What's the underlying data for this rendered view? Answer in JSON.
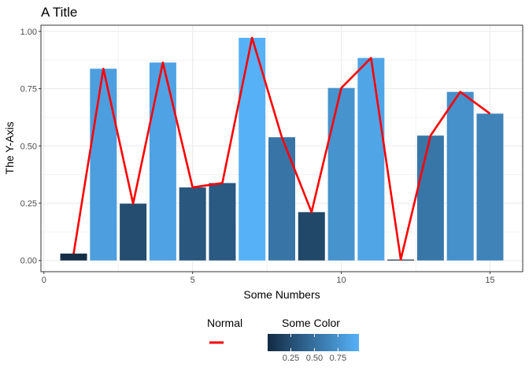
{
  "chart_data": {
    "type": "bar",
    "title": "A Title",
    "xlabel": "Some Numbers",
    "ylabel": "The Y-Axis",
    "xlim": [
      -0.1,
      16.1
    ],
    "ylim": [
      -0.049,
      1.027
    ],
    "x_ticks": [
      0,
      5,
      10,
      15
    ],
    "y_ticks": [
      0.0,
      0.25,
      0.5,
      0.75,
      1.0
    ],
    "y_tick_labels": [
      "0.00",
      "0.25",
      "0.50",
      "0.75",
      "1.00"
    ],
    "grid": true,
    "legend_position": "bottom",
    "x": [
      1,
      2,
      3,
      4,
      5,
      6,
      7,
      8,
      9,
      10,
      11,
      12,
      13,
      14,
      15
    ],
    "values": [
      0.03,
      0.837,
      0.248,
      0.864,
      0.319,
      0.338,
      0.972,
      0.538,
      0.211,
      0.753,
      0.884,
      0.004,
      0.545,
      0.736,
      0.641
    ],
    "series": [
      {
        "name": "Normal",
        "type": "line",
        "color": "#ff0000",
        "values": [
          0.03,
          0.837,
          0.248,
          0.864,
          0.319,
          0.338,
          0.972,
          0.538,
          0.211,
          0.753,
          0.884,
          0.004,
          0.545,
          0.736,
          0.641
        ]
      }
    ],
    "color_scale": {
      "name": "Some Color",
      "low_color": "#132b43",
      "high_color": "#56b1f7",
      "range": [
        0.004,
        0.972
      ],
      "ticks": [
        0.25,
        0.5,
        0.75
      ],
      "tick_labels": [
        "0.25",
        "0.50",
        "0.75"
      ]
    }
  }
}
